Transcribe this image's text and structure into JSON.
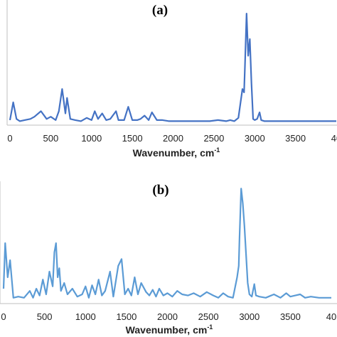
{
  "chart_data": [
    {
      "type": "line",
      "panel_label": "(a)",
      "xlabel": "Wavenumber, cm",
      "xlabel_sup": "-1",
      "x_ticks": [
        "0",
        "500",
        "1000",
        "1500",
        "2000",
        "2500",
        "3000",
        "3500",
        "40"
      ],
      "xlim": [
        0,
        4000
      ],
      "ylim": [
        0,
        1
      ],
      "color": "#4472c4",
      "series": [
        {
          "x": [
            0,
            40,
            80,
            120,
            180,
            250,
            300,
            380,
            450,
            500,
            560,
            600,
            640,
            680,
            700,
            740,
            800,
            870,
            940,
            1000,
            1040,
            1080,
            1130,
            1180,
            1230,
            1300,
            1330,
            1400,
            1450,
            1500,
            1560,
            1600,
            1650,
            1700,
            1740,
            1800,
            1870,
            1950,
            2050,
            2150,
            2250,
            2350,
            2450,
            2550,
            2650,
            2700,
            2750,
            2800,
            2850,
            2870,
            2880,
            2900,
            2920,
            2940,
            2960,
            2980,
            3000,
            3030,
            3060,
            3080,
            3120,
            3200,
            3400,
            3600,
            3800,
            4000
          ],
          "y": [
            0.02,
            0.18,
            0.03,
            0.01,
            0.02,
            0.03,
            0.05,
            0.1,
            0.03,
            0.05,
            0.02,
            0.1,
            0.3,
            0.08,
            0.22,
            0.03,
            0.02,
            0.01,
            0.04,
            0.02,
            0.1,
            0.03,
            0.08,
            0.02,
            0.03,
            0.1,
            0.02,
            0.02,
            0.14,
            0.02,
            0.02,
            0.03,
            0.06,
            0.02,
            0.09,
            0.02,
            0.02,
            0.01,
            0.01,
            0.01,
            0.01,
            0.01,
            0.01,
            0.02,
            0.01,
            0.02,
            0.01,
            0.04,
            0.3,
            0.27,
            0.5,
            0.98,
            0.6,
            0.75,
            0.35,
            0.03,
            0.02,
            0.03,
            0.09,
            0.02,
            0.01,
            0.01,
            0.01,
            0.01,
            0.01,
            0.01
          ]
        }
      ]
    },
    {
      "type": "line",
      "panel_label": "(b)",
      "xlabel": "Wavenumber, cm",
      "xlabel_sup": "-1",
      "x_ticks": [
        "0",
        "500",
        "1000",
        "1500",
        "2000",
        "2500",
        "3000",
        "3500",
        "40"
      ],
      "xlim": [
        0,
        4000
      ],
      "ylim": [
        0,
        1
      ],
      "color": "#5b9bd5",
      "series": [
        {
          "x": [
            0,
            20,
            50,
            80,
            120,
            180,
            250,
            320,
            360,
            400,
            440,
            480,
            520,
            560,
            600,
            620,
            640,
            660,
            680,
            700,
            740,
            780,
            840,
            900,
            960,
            1000,
            1040,
            1080,
            1120,
            1160,
            1200,
            1240,
            1300,
            1340,
            1400,
            1440,
            1480,
            1520,
            1560,
            1600,
            1640,
            1680,
            1740,
            1780,
            1820,
            1860,
            1900,
            1950,
            2000,
            2060,
            2120,
            2180,
            2250,
            2320,
            2400,
            2480,
            2560,
            2620,
            2680,
            2740,
            2800,
            2850,
            2870,
            2880,
            2900,
            2920,
            2940,
            2960,
            2980,
            3000,
            3030,
            3060,
            3080,
            3120,
            3200,
            3300,
            3380,
            3450,
            3500,
            3560,
            3620,
            3680,
            3750,
            3850,
            4000
          ],
          "y": [
            0.1,
            0.5,
            0.2,
            0.35,
            0.02,
            0.03,
            0.02,
            0.08,
            0.02,
            0.1,
            0.04,
            0.18,
            0.05,
            0.25,
            0.12,
            0.42,
            0.5,
            0.2,
            0.28,
            0.08,
            0.15,
            0.05,
            0.1,
            0.03,
            0.05,
            0.12,
            0.02,
            0.13,
            0.05,
            0.18,
            0.04,
            0.08,
            0.25,
            0.03,
            0.3,
            0.36,
            0.05,
            0.1,
            0.04,
            0.2,
            0.05,
            0.15,
            0.07,
            0.04,
            0.09,
            0.03,
            0.1,
            0.04,
            0.06,
            0.03,
            0.08,
            0.05,
            0.04,
            0.06,
            0.03,
            0.07,
            0.04,
            0.02,
            0.06,
            0.03,
            0.02,
            0.2,
            0.3,
            0.55,
            0.98,
            0.85,
            0.65,
            0.4,
            0.15,
            0.05,
            0.03,
            0.14,
            0.04,
            0.03,
            0.02,
            0.05,
            0.02,
            0.06,
            0.03,
            0.04,
            0.05,
            0.02,
            0.03,
            0.02,
            0.02
          ]
        }
      ]
    }
  ]
}
